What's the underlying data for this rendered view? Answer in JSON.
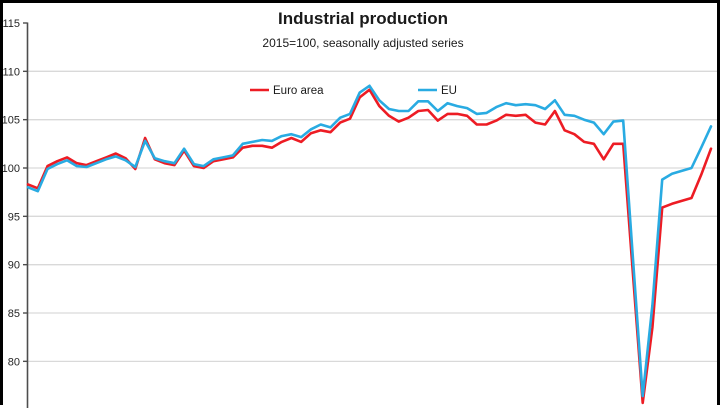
{
  "window": {
    "background_color": "#ffffff",
    "frame_color": "#000000"
  },
  "header": {
    "title": "Industrial production",
    "subtitle": "2015=100, seasonally adjusted series"
  },
  "legend": {
    "items": [
      {
        "label": "Euro area",
        "color": "#ed1c24"
      },
      {
        "label": "EU",
        "color": "#29abe2"
      }
    ]
  },
  "style": {
    "grid_color": "#d9d9d9",
    "axis_color": "#4d4d4d",
    "tick_color": "#4d4d4d",
    "label_color": "#262626",
    "euro_area_color": "#ed1c24",
    "eu_color": "#29abe2"
  },
  "chart_data": {
    "type": "line",
    "title": "Industrial production",
    "subtitle": "2015=100, seasonally adjusted series",
    "x_start": "2015-01",
    "x_end": "2020-11",
    "x_frequency": "monthly",
    "n_points": 71,
    "ylabel": "",
    "xlabel": "",
    "yticks": [
      115,
      110,
      105,
      100,
      95,
      90,
      85,
      80
    ],
    "gridlines": [
      110,
      105,
      100,
      95,
      90,
      85,
      80
    ],
    "ylim_visible": [
      75,
      116
    ],
    "grid": "horizontal",
    "legend_position": "top-inside",
    "series": [
      {
        "name": "Euro area",
        "color": "#ed1c24",
        "values": [
          98.3,
          97.9,
          100.2,
          100.7,
          101.1,
          100.5,
          100.3,
          100.7,
          101.1,
          101.5,
          101.0,
          99.9,
          103.1,
          100.9,
          100.5,
          100.3,
          101.8,
          100.2,
          100.0,
          100.7,
          100.9,
          101.1,
          102.1,
          102.3,
          102.3,
          102.1,
          102.7,
          103.1,
          102.7,
          103.6,
          103.9,
          103.7,
          104.7,
          105.1,
          107.3,
          108.1,
          106.4,
          105.4,
          104.8,
          105.2,
          105.9,
          106.0,
          104.9,
          105.6,
          105.6,
          105.4,
          104.5,
          104.5,
          104.9,
          105.5,
          105.4,
          105.5,
          104.7,
          104.5,
          105.9,
          103.9,
          103.5,
          102.7,
          102.5,
          100.9,
          102.5,
          102.5,
          89.1,
          75.7,
          83.5,
          95.9,
          96.3,
          96.6,
          96.9,
          99.3,
          102.0
        ]
      },
      {
        "name": "EU",
        "color": "#29abe2",
        "values": [
          98.0,
          97.6,
          99.9,
          100.4,
          100.8,
          100.2,
          100.1,
          100.5,
          100.9,
          101.2,
          100.8,
          100.1,
          102.8,
          101.0,
          100.7,
          100.5,
          102.0,
          100.4,
          100.2,
          100.9,
          101.1,
          101.3,
          102.5,
          102.7,
          102.9,
          102.8,
          103.3,
          103.5,
          103.2,
          104.0,
          104.5,
          104.2,
          105.2,
          105.6,
          107.8,
          108.5,
          107.0,
          106.1,
          105.9,
          105.9,
          106.9,
          106.9,
          105.9,
          106.7,
          106.4,
          106.2,
          105.6,
          105.7,
          106.3,
          106.7,
          106.5,
          106.6,
          106.5,
          106.1,
          107.0,
          105.5,
          105.4,
          105.0,
          104.7,
          103.5,
          104.8,
          104.9,
          90.7,
          76.4,
          85.8,
          98.8,
          99.4,
          99.7,
          100.0,
          102.1,
          104.3
        ]
      }
    ]
  }
}
